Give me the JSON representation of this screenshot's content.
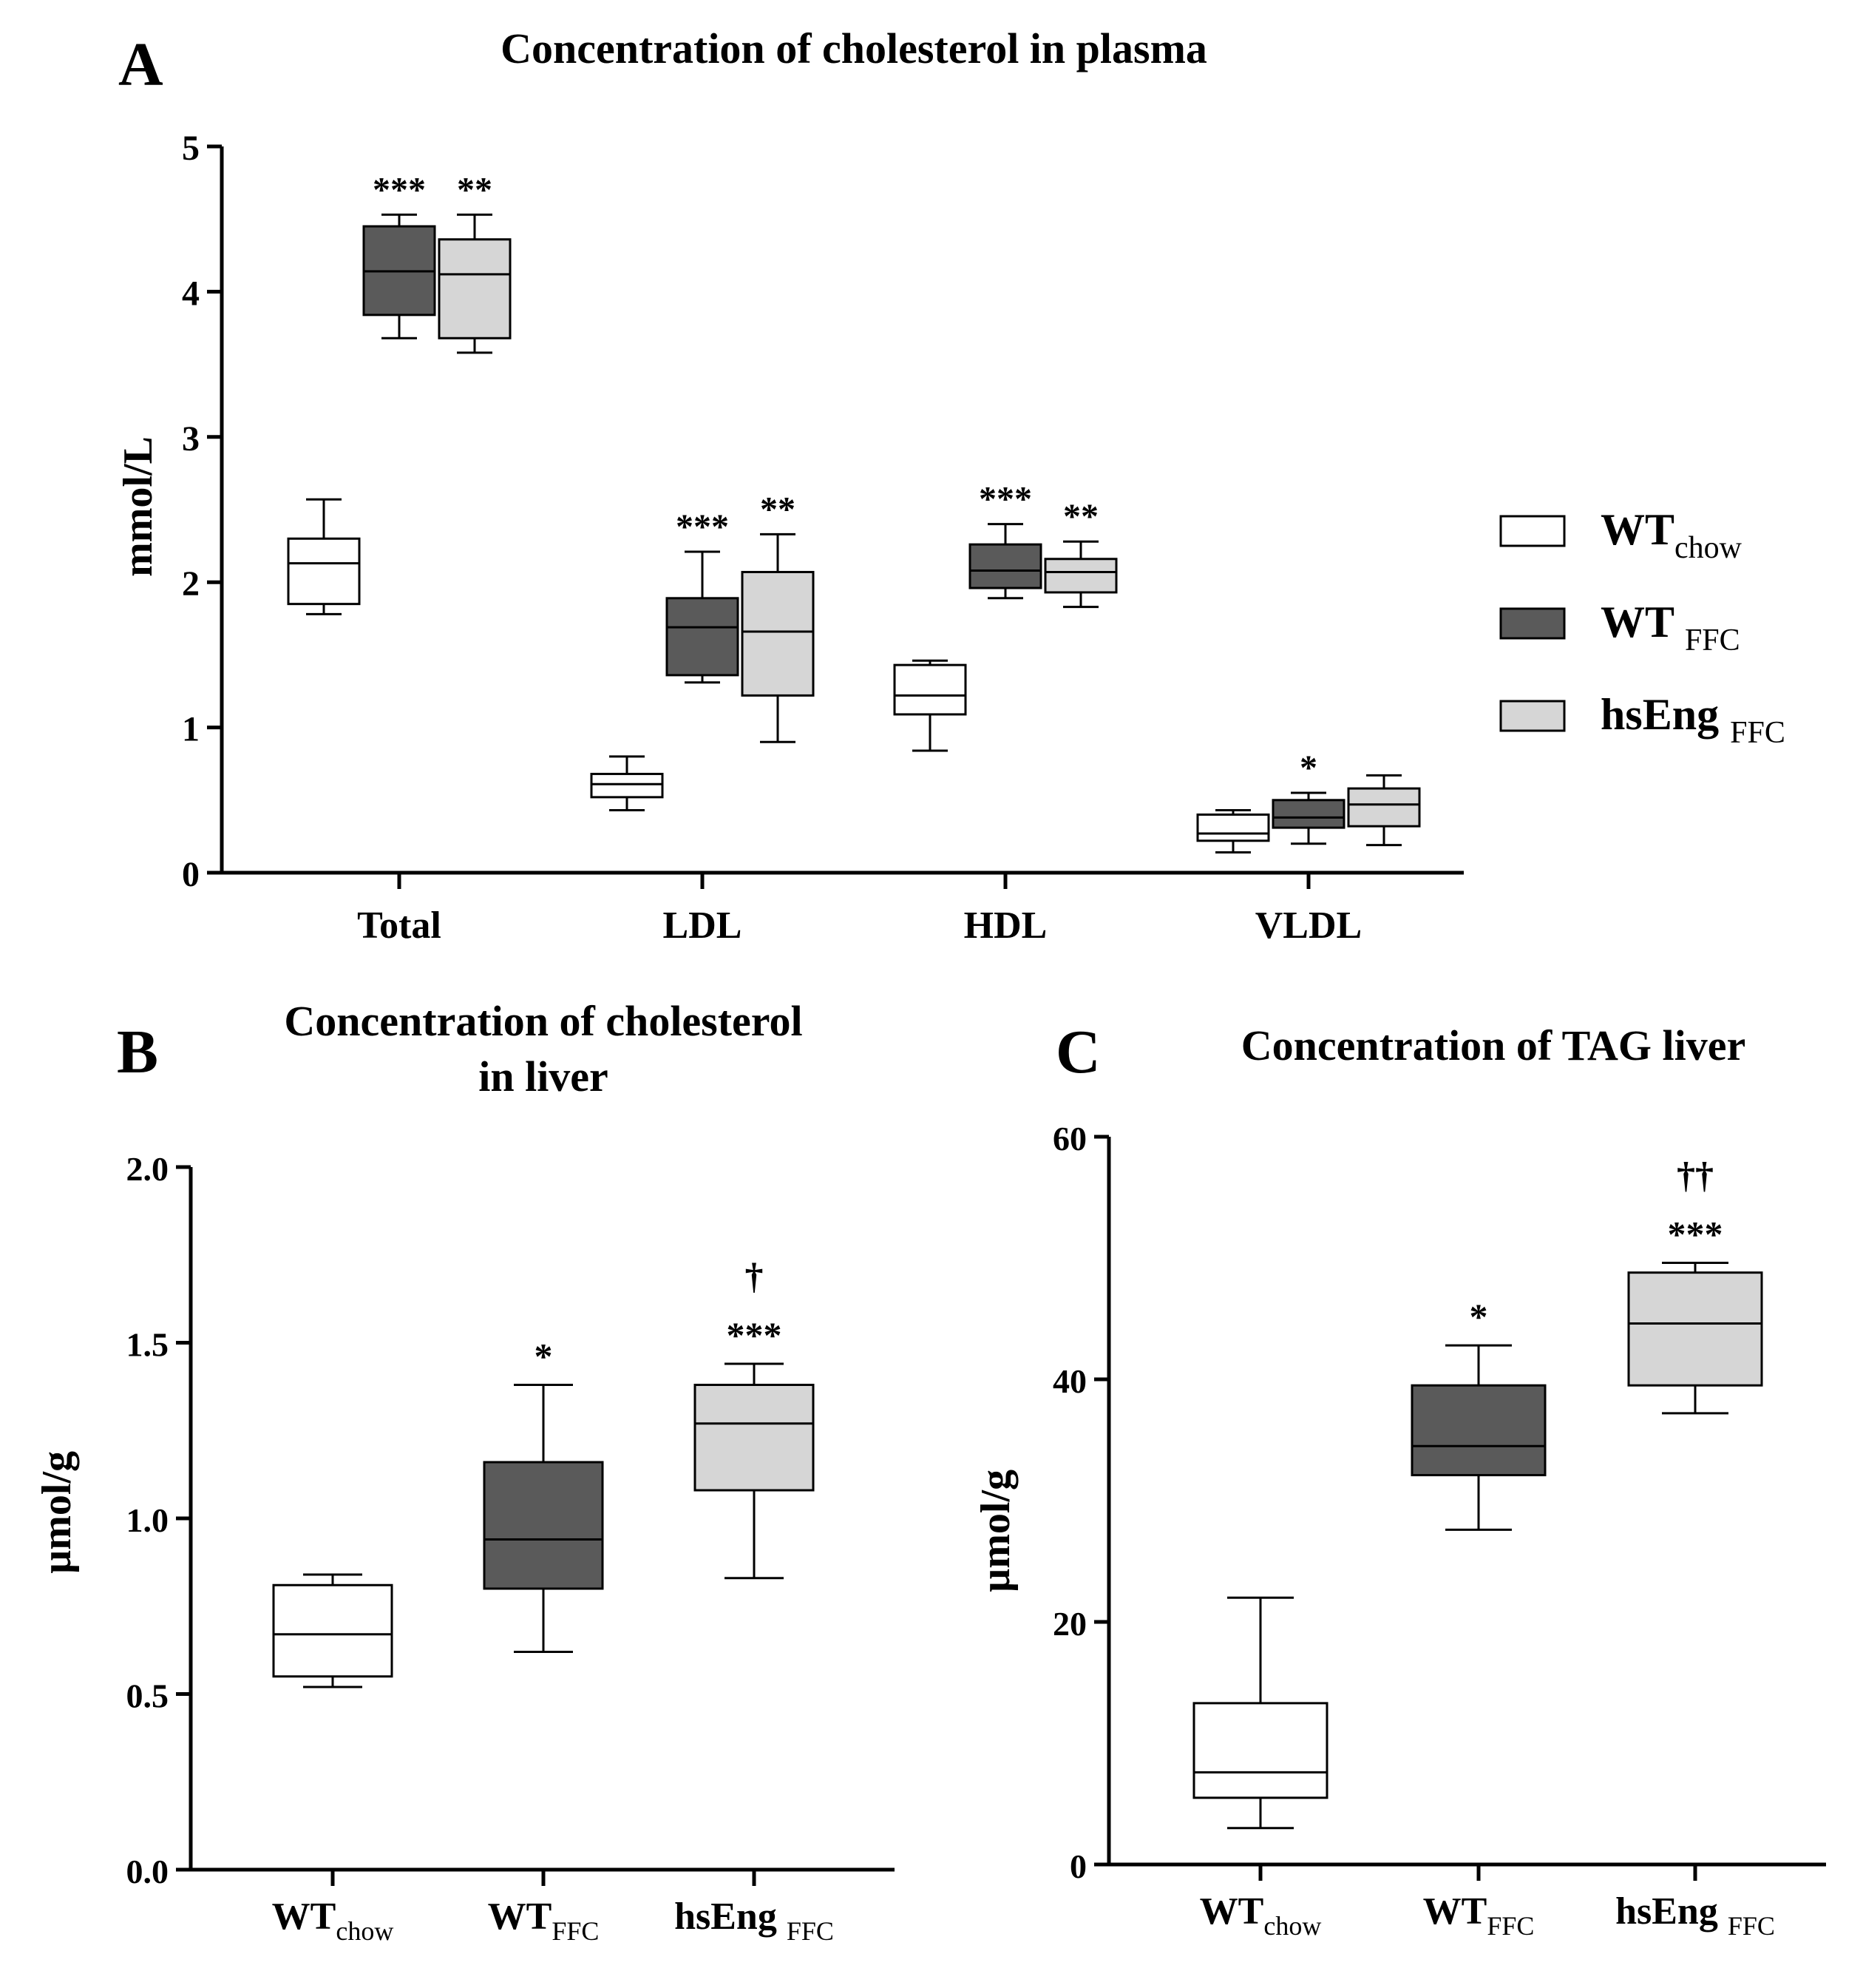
{
  "legend": {
    "items": [
      {
        "base": "WT",
        "sub": "chow",
        "color": "#ffffff"
      },
      {
        "base": "WT ",
        "sub": "FFC",
        "color": "#5a5a5a"
      },
      {
        "base": "hsEng ",
        "sub": "FFC",
        "color": "#d6d6d6"
      }
    ]
  },
  "chart_data": [
    {
      "panel": "A",
      "type": "box",
      "title": "Concentration of cholesterol in plasma",
      "ylabel": "mmol/L",
      "xlabel": "",
      "ylim": [
        0,
        5
      ],
      "yticks": [
        "0",
        "1",
        "2",
        "3",
        "4",
        "5"
      ],
      "categories": [
        "Total",
        "LDL",
        "HDL",
        "VLDL"
      ],
      "legend_position": "right",
      "series": [
        {
          "name": "WTchow",
          "color": "#ffffff",
          "boxes": [
            {
              "min": 1.78,
              "q1": 1.85,
              "median": 2.13,
              "q3": 2.3,
              "max": 2.57,
              "mark": ""
            },
            {
              "min": 0.43,
              "q1": 0.52,
              "median": 0.61,
              "q3": 0.68,
              "max": 0.8,
              "mark": ""
            },
            {
              "min": 0.84,
              "q1": 1.09,
              "median": 1.22,
              "q3": 1.43,
              "max": 1.46,
              "mark": ""
            },
            {
              "min": 0.14,
              "q1": 0.22,
              "median": 0.27,
              "q3": 0.4,
              "max": 0.43,
              "mark": ""
            }
          ]
        },
        {
          "name": "WT FFC",
          "color": "#5a5a5a",
          "boxes": [
            {
              "min": 3.68,
              "q1": 3.84,
              "median": 4.14,
              "q3": 4.45,
              "max": 4.53,
              "mark": "***"
            },
            {
              "min": 1.31,
              "q1": 1.36,
              "median": 1.69,
              "q3": 1.89,
              "max": 2.21,
              "mark": "***"
            },
            {
              "min": 1.89,
              "q1": 1.96,
              "median": 2.08,
              "q3": 2.26,
              "max": 2.4,
              "mark": "***"
            },
            {
              "min": 0.2,
              "q1": 0.31,
              "median": 0.38,
              "q3": 0.5,
              "max": 0.55,
              "mark": "*"
            }
          ]
        },
        {
          "name": "hsEng FFC",
          "color": "#d6d6d6",
          "boxes": [
            {
              "min": 3.58,
              "q1": 3.68,
              "median": 4.12,
              "q3": 4.36,
              "max": 4.53,
              "mark": "**"
            },
            {
              "min": 0.9,
              "q1": 1.22,
              "median": 1.66,
              "q3": 2.07,
              "max": 2.33,
              "mark": "**"
            },
            {
              "min": 1.83,
              "q1": 1.93,
              "median": 2.07,
              "q3": 2.16,
              "max": 2.28,
              "mark": "**"
            },
            {
              "min": 0.19,
              "q1": 0.32,
              "median": 0.47,
              "q3": 0.58,
              "max": 0.67,
              "mark": ""
            }
          ]
        }
      ]
    },
    {
      "panel": "B",
      "type": "box",
      "title_lines": [
        "Concentration of cholesterol",
        "in liver"
      ],
      "ylabel": "µmol/g",
      "xlabel": "",
      "ylim": [
        0,
        2.0
      ],
      "yticks": [
        "0.0",
        "0.5",
        "1.0",
        "1.5",
        "2.0"
      ],
      "categories": [
        {
          "base": "WT",
          "sub": "chow"
        },
        {
          "base": "WT",
          "sub": "FFC"
        },
        {
          "base": "hsEng ",
          "sub": "FFC"
        }
      ],
      "boxes": [
        {
          "color": "#ffffff",
          "min": 0.52,
          "q1": 0.55,
          "median": 0.67,
          "q3": 0.81,
          "max": 0.84,
          "marks": []
        },
        {
          "color": "#5a5a5a",
          "min": 0.62,
          "q1": 0.8,
          "median": 0.94,
          "q3": 1.16,
          "max": 1.38,
          "marks": [
            "*"
          ]
        },
        {
          "color": "#d6d6d6",
          "min": 0.83,
          "q1": 1.08,
          "median": 1.27,
          "q3": 1.38,
          "max": 1.44,
          "marks": [
            "***",
            "†"
          ]
        }
      ]
    },
    {
      "panel": "C",
      "type": "box",
      "title": "Concentration of TAG liver",
      "ylabel": "µmol/g",
      "xlabel": "",
      "ylim": [
        0,
        60
      ],
      "yticks": [
        "0",
        "20",
        "40",
        "60"
      ],
      "categories": [
        {
          "base": "WT",
          "sub": "chow"
        },
        {
          "base": "WT",
          "sub": "FFC"
        },
        {
          "base": "hsEng ",
          "sub": "FFC"
        }
      ],
      "boxes": [
        {
          "color": "#ffffff",
          "min": 3.0,
          "q1": 5.5,
          "median": 7.6,
          "q3": 13.3,
          "max": 22.0,
          "marks": []
        },
        {
          "color": "#5a5a5a",
          "min": 27.6,
          "q1": 32.1,
          "median": 34.5,
          "q3": 39.5,
          "max": 42.8,
          "marks": [
            "*"
          ]
        },
        {
          "color": "#d6d6d6",
          "min": 37.2,
          "q1": 39.5,
          "median": 44.6,
          "q3": 48.8,
          "max": 49.6,
          "marks": [
            "***",
            "††"
          ]
        }
      ]
    }
  ]
}
